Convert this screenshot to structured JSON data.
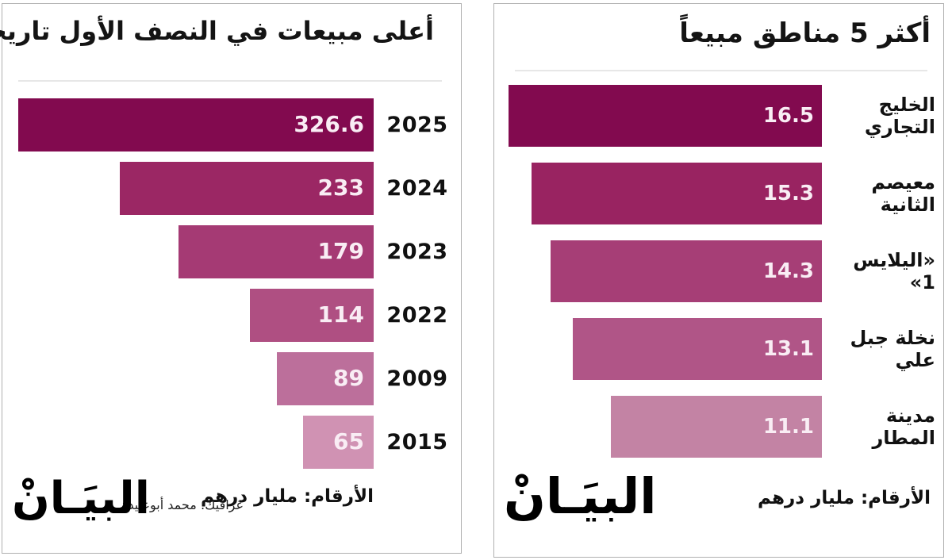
{
  "page": {
    "background": "#ffffff",
    "panel_border_color": "#b0b0b0",
    "value_text_color": "#f9edf4",
    "label_text_color": "#111111"
  },
  "chart_data": [
    {
      "type": "bar",
      "orientation": "horizontal-rtl",
      "title": "أعلى مبيعات في النصف الأول تاريخياً",
      "categories": [
        "2025",
        "2024",
        "2023",
        "2022",
        "2009",
        "2015"
      ],
      "values": [
        326.6,
        233,
        179,
        114,
        89,
        65
      ],
      "value_labels": [
        "326.6",
        "233",
        "179",
        "114",
        "89",
        "65"
      ],
      "bar_colors": [
        "#820a4f",
        "#9b2764",
        "#a53a74",
        "#af4f82",
        "#bc6f9b",
        "#d092b3"
      ],
      "value_text_color": "#f9edf4",
      "xlim": [
        0,
        326.6
      ],
      "grid": false,
      "legend": false,
      "footnote": "الأرقام: مليار درهم",
      "credit": "غرافيك: محمد أبوعبيدة",
      "logo": "البيَـانْ"
    },
    {
      "type": "bar",
      "orientation": "horizontal-rtl",
      "title": "أكثر 5 مناطق مبيعاً",
      "categories": [
        "الخليج التجاري",
        "معيصم الثانية",
        "«اليلايس 1»",
        "نخلة جبل علي",
        "مدينة المطار"
      ],
      "values": [
        16.5,
        15.3,
        14.3,
        13.1,
        11.1
      ],
      "value_labels": [
        "16.5",
        "15.3",
        "14.3",
        "13.1",
        "11.1"
      ],
      "bar_colors": [
        "#820a4f",
        "#992361",
        "#a63e76",
        "#b05587",
        "#c383a4"
      ],
      "value_text_color": "#f9edf4",
      "xlim": [
        0,
        16.5
      ],
      "grid": false,
      "legend": false,
      "footnote": "الأرقام: مليار درهم",
      "logo": "البيَـانْ"
    }
  ]
}
